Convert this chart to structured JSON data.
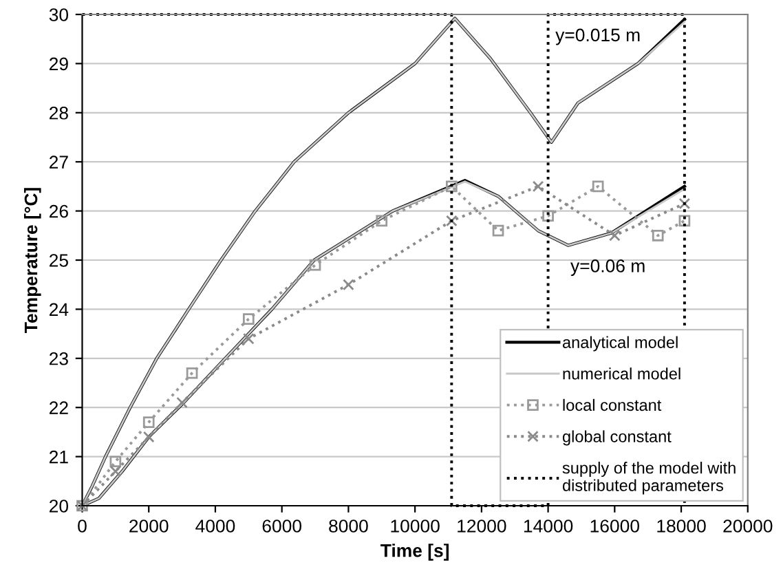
{
  "chart_data": {
    "type": "line",
    "xlabel": "Time [s]",
    "ylabel": "Temperature [°C]",
    "xlim": [
      0,
      20000
    ],
    "xticks": [
      0,
      2000,
      4000,
      6000,
      8000,
      10000,
      12000,
      14000,
      16000,
      18000,
      20000
    ],
    "ylim": [
      20,
      30
    ],
    "yticks": [
      20,
      21,
      22,
      23,
      24,
      25,
      26,
      27,
      28,
      29,
      30
    ],
    "grid": "y",
    "legend": "bottom right",
    "annotations": [
      "y=0.015 m",
      "y=0.06 m"
    ],
    "series": [
      {
        "name": "analytical model",
        "color": "#000000",
        "line_style": "solid",
        "marker": "none",
        "x": [
          0,
          300,
          700,
          1440,
          2240,
          3200,
          4170,
          5200,
          6370,
          8000,
          10000,
          11200,
          12270,
          13470,
          14100,
          14900,
          16700,
          18100
        ],
        "values": [
          20,
          20.4,
          21,
          22,
          23,
          24,
          25,
          26,
          27,
          28,
          29,
          29.92,
          29.1,
          28.0,
          27.4,
          28.2,
          29.0,
          29.9
        ]
      },
      {
        "color": "#000000",
        "line_style": "solid",
        "marker": "none",
        "x": [
          0,
          500,
          1200,
          2000,
          3050,
          4300,
          5700,
          6970,
          9330,
          11500,
          12500,
          13700,
          14600,
          15900,
          18100
        ],
        "values": [
          20,
          20.15,
          20.7,
          21.4,
          22.1,
          23,
          24,
          25,
          26,
          26.62,
          26.3,
          25.6,
          25.3,
          25.55,
          26.5
        ]
      },
      {
        "name": "numerical model",
        "color": "#c8c8c8",
        "line_style": "solid",
        "marker": "none",
        "x": [
          0,
          300,
          700,
          1440,
          2240,
          3200,
          4170,
          5200,
          6370,
          8000,
          10000,
          11200,
          12270,
          13470,
          14100,
          14900,
          16700,
          18100
        ],
        "values": [
          20,
          20.4,
          21,
          22,
          23,
          24,
          25,
          26,
          27,
          28,
          29,
          29.92,
          29.1,
          28.0,
          27.4,
          28.2,
          29.0,
          29.85
        ]
      },
      {
        "color": "#c8c8c8",
        "line_style": "solid",
        "marker": "none",
        "x": [
          0,
          500,
          1200,
          2000,
          3050,
          4300,
          5700,
          6970,
          9330,
          11500,
          12500,
          13700,
          14600,
          15900,
          18100
        ],
        "values": [
          20,
          20.15,
          20.7,
          21.4,
          22.1,
          23,
          24,
          25,
          26,
          26.6,
          26.3,
          25.6,
          25.3,
          25.55,
          26.45
        ]
      },
      {
        "name": "local constant",
        "color": "#9a9a9a",
        "line_style": "dotted",
        "marker": "square",
        "x": [
          0,
          1000,
          2000,
          3300,
          5000,
          7000,
          9000,
          11100,
          12500,
          14000,
          15500,
          17300,
          18100
        ],
        "values": [
          20,
          20.9,
          21.7,
          22.7,
          23.8,
          24.9,
          25.8,
          26.5,
          25.6,
          25.9,
          26.5,
          25.5,
          25.8
        ]
      },
      {
        "name": "global constant",
        "color": "#8a8a8a",
        "line_style": "dotted",
        "marker": "cross",
        "x": [
          0,
          1000,
          2000,
          3000,
          5000,
          8000,
          11100,
          13700,
          16000,
          18100
        ],
        "values": [
          20,
          20.7,
          21.4,
          22.1,
          23.4,
          24.5,
          25.8,
          26.5,
          25.5,
          26.15
        ]
      },
      {
        "name": "supply of the model with\ndistributed parameters",
        "color": "#000000",
        "line_style": "dotted",
        "marker": "none",
        "x": [
          0,
          11100,
          11100,
          14000,
          14000,
          18100,
          18100
        ],
        "values": [
          30,
          30,
          20,
          20,
          30,
          30,
          20
        ]
      }
    ]
  }
}
